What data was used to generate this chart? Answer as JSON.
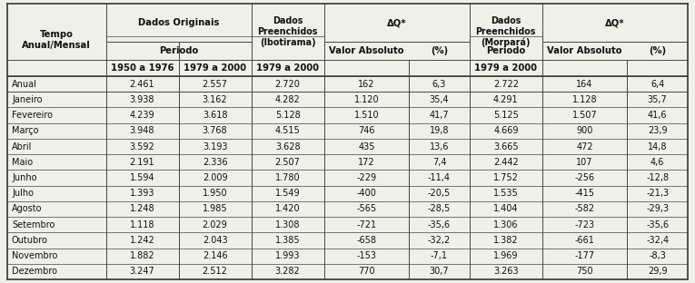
{
  "rows": [
    [
      "Anual",
      "2.461",
      "2.557",
      "2.720",
      "162",
      "6,3",
      "2.722",
      "164",
      "6,4"
    ],
    [
      "Janeiro",
      "3.938",
      "3.162",
      "4.282",
      "1.120",
      "35,4",
      "4.291",
      "1.128",
      "35,7"
    ],
    [
      "Fevereiro",
      "4.239",
      "3.618",
      "5.128",
      "1.510",
      "41,7",
      "5.125",
      "1.507",
      "41,6"
    ],
    [
      "Março",
      "3.948",
      "3.768",
      "4.515",
      "746",
      "19,8",
      "4.669",
      "900",
      "23,9"
    ],
    [
      "Abril",
      "3.592",
      "3.193",
      "3.628",
      "435",
      "13,6",
      "3.665",
      "472",
      "14,8"
    ],
    [
      "Maio",
      "2.191",
      "2.336",
      "2.507",
      "172",
      "7,4",
      "2.442",
      "107",
      "4,6"
    ],
    [
      "Junho",
      "1.594",
      "2.009",
      "1.780",
      "-229",
      "-11,4",
      "1.752",
      "-256",
      "-12,8"
    ],
    [
      "Julho",
      "1.393",
      "1.950",
      "1.549",
      "-400",
      "-20,5",
      "1.535",
      "-415",
      "-21,3"
    ],
    [
      "Agosto",
      "1.248",
      "1.985",
      "1.420",
      "-565",
      "-28,5",
      "1.404",
      "-582",
      "-29,3"
    ],
    [
      "Setembro",
      "1.118",
      "2.029",
      "1.308",
      "-721",
      "-35,6",
      "1.306",
      "-723",
      "-35,6"
    ],
    [
      "Outubro",
      "1.242",
      "2.043",
      "1.385",
      "-658",
      "-32,2",
      "1.382",
      "-661",
      "-32,4"
    ],
    [
      "Novembro",
      "1.882",
      "2.146",
      "1.993",
      "-153",
      "-7,1",
      "1.969",
      "-177",
      "-8,3"
    ],
    [
      "Dezembro",
      "3.247",
      "2.512",
      "3.282",
      "770",
      "30,7",
      "3.263",
      "750",
      "29,9"
    ]
  ],
  "bg_color": "#f0efe8",
  "line_color": "#444444",
  "text_color": "#111111",
  "font_size": 7.0,
  "header_font_size": 7.2
}
